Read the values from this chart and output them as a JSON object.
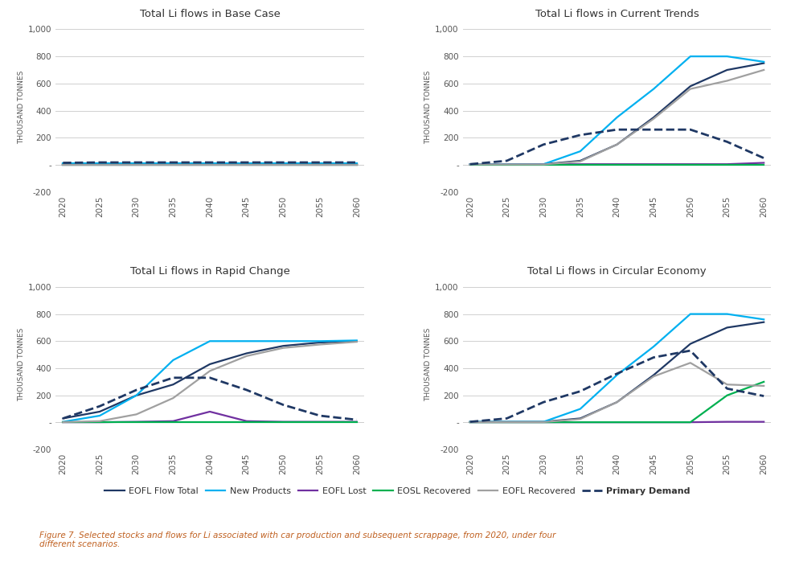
{
  "years": [
    2020,
    2025,
    2030,
    2035,
    2040,
    2045,
    2050,
    2055,
    2060
  ],
  "scenarios": [
    "Base Case",
    "Current Trends",
    "Rapid Change",
    "Circular Economy"
  ],
  "series": {
    "EOFL Flow Total": {
      "color": "#1f3864",
      "linestyle": "solid",
      "linewidth": 1.6,
      "Base Case": [
        5,
        5,
        5,
        5,
        5,
        5,
        5,
        5,
        5
      ],
      "Current Trends": [
        5,
        5,
        5,
        30,
        150,
        350,
        580,
        700,
        750
      ],
      "Rapid Change": [
        30,
        80,
        200,
        280,
        430,
        510,
        565,
        590,
        600
      ],
      "Circular Economy": [
        5,
        5,
        5,
        30,
        150,
        350,
        580,
        700,
        740
      ]
    },
    "New Products": {
      "color": "#00b0f0",
      "linestyle": "solid",
      "linewidth": 1.6,
      "Base Case": [
        10,
        10,
        10,
        10,
        10,
        10,
        10,
        10,
        10
      ],
      "Current Trends": [
        5,
        5,
        5,
        100,
        350,
        560,
        800,
        800,
        760
      ],
      "Rapid Change": [
        5,
        50,
        200,
        460,
        600,
        600,
        600,
        600,
        605
      ],
      "Circular Economy": [
        5,
        5,
        5,
        100,
        350,
        560,
        800,
        800,
        760
      ]
    },
    "EOFL Lost": {
      "color": "#7030a0",
      "linestyle": "solid",
      "linewidth": 1.6,
      "Base Case": [
        2,
        2,
        2,
        2,
        2,
        2,
        2,
        2,
        2
      ],
      "Current Trends": [
        2,
        2,
        3,
        5,
        5,
        5,
        5,
        5,
        15
      ],
      "Rapid Change": [
        2,
        2,
        5,
        10,
        80,
        10,
        5,
        5,
        5
      ],
      "Circular Economy": [
        2,
        2,
        2,
        2,
        2,
        2,
        2,
        5,
        5
      ]
    },
    "EOSL Recovered": {
      "color": "#00b050",
      "linestyle": "solid",
      "linewidth": 1.6,
      "Base Case": [
        2,
        2,
        2,
        2,
        2,
        2,
        2,
        2,
        2
      ],
      "Current Trends": [
        2,
        2,
        2,
        2,
        2,
        2,
        2,
        2,
        2
      ],
      "Rapid Change": [
        2,
        2,
        2,
        2,
        2,
        2,
        2,
        2,
        2
      ],
      "Circular Economy": [
        2,
        2,
        2,
        2,
        2,
        2,
        2,
        200,
        300
      ]
    },
    "EOFL Recovered": {
      "color": "#a0a0a0",
      "linestyle": "solid",
      "linewidth": 1.6,
      "Base Case": [
        3,
        3,
        3,
        3,
        3,
        3,
        3,
        3,
        3
      ],
      "Current Trends": [
        3,
        3,
        3,
        25,
        150,
        340,
        560,
        620,
        700
      ],
      "Rapid Change": [
        3,
        10,
        60,
        180,
        380,
        490,
        550,
        575,
        595
      ],
      "Circular Economy": [
        3,
        3,
        3,
        25,
        150,
        340,
        440,
        280,
        270
      ]
    },
    "Primary Demand": {
      "color": "#1f3864",
      "linestyle": "dashed",
      "linewidth": 2.0,
      "Base Case": [
        15,
        18,
        18,
        18,
        18,
        18,
        18,
        18,
        18
      ],
      "Current Trends": [
        5,
        30,
        150,
        220,
        260,
        260,
        260,
        170,
        50
      ],
      "Rapid Change": [
        30,
        120,
        240,
        330,
        330,
        240,
        130,
        50,
        20
      ],
      "Circular Economy": [
        5,
        30,
        150,
        230,
        360,
        480,
        530,
        250,
        195
      ]
    }
  },
  "ylim": [
    -200,
    1050
  ],
  "yticks": [
    -200,
    0,
    200,
    400,
    600,
    800,
    1000
  ],
  "ytick_labels": [
    "-200",
    "-",
    "200",
    "400",
    "600",
    "800",
    "1,000"
  ],
  "xticks": [
    2020,
    2025,
    2030,
    2035,
    2040,
    2045,
    2050,
    2055,
    2060
  ],
  "ylabel": "THOUSAND TONNES",
  "background_color": "#ffffff",
  "grid_color": "#d0d0d0",
  "title_fontsize": 9.5,
  "axis_label_fontsize": 6.5,
  "tick_fontsize": 7.5,
  "legend_labels": [
    "EOFL Flow Total",
    "New Products",
    "EOFL Lost",
    "EOSL Recovered",
    "EOFL Recovered",
    "Primary Demand"
  ],
  "figure_caption": "Figure 7. Selected stocks and flows for Li associated with car production and subsequent scrappage, from 2020, under four\ndifferent scenarios."
}
